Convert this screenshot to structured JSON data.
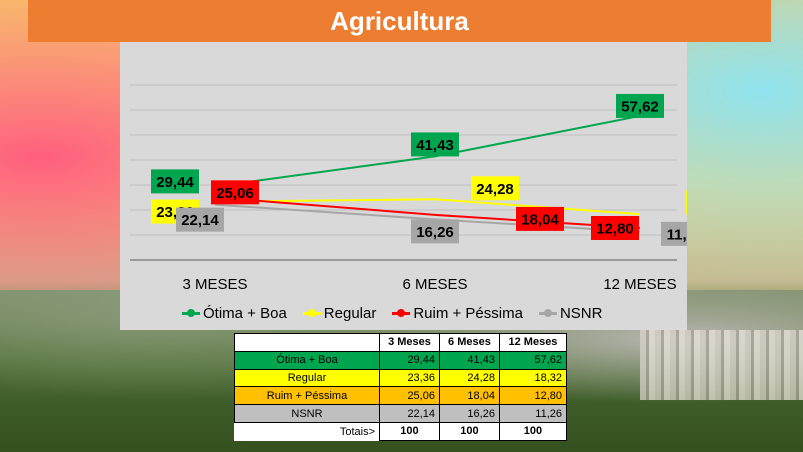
{
  "title": "Agricultura",
  "colors": {
    "title_bar": "#ed7d31",
    "otima": "#00a550",
    "regular": "#ffff00",
    "ruim": "#ff0000",
    "nsnr": "#a6a6a6",
    "row_regular": "#ffff00",
    "row_ruim": "#ffc000",
    "row_nsnr": "#bfbfbf"
  },
  "chart_data": {
    "type": "line",
    "categories": [
      "3 MESES",
      "6 MESES",
      "12 MESES"
    ],
    "series": [
      {
        "name": "Ótima + Boa",
        "values": [
          29.44,
          41.43,
          57.62
        ],
        "labels": [
          "29,44",
          "41,43",
          "57,62"
        ],
        "color": "#00a550"
      },
      {
        "name": "Regular",
        "values": [
          23.36,
          24.28,
          18.32
        ],
        "labels": [
          "23,36",
          "24,28",
          "18,32"
        ],
        "color": "#ffff00"
      },
      {
        "name": "Ruim + Péssima",
        "values": [
          25.06,
          18.04,
          12.8
        ],
        "labels": [
          "25,06",
          "18,04",
          "12,80"
        ],
        "color": "#ff0000"
      },
      {
        "name": "NSNR",
        "values": [
          22.14,
          16.26,
          11.26
        ],
        "labels": [
          "22,14",
          "16,26",
          "11,26"
        ],
        "color": "#a6a6a6"
      }
    ],
    "grid": true,
    "legend_position": "bottom"
  },
  "table": {
    "headers": [
      "",
      "3 Meses",
      "6 Meses",
      "12 Meses"
    ],
    "rows": [
      {
        "label": "Ótima + Boa",
        "values": [
          "29,44",
          "41,43",
          "57,62"
        ]
      },
      {
        "label": "Regular",
        "values": [
          "23,36",
          "24,28",
          "18,32"
        ]
      },
      {
        "label": "Ruim + Péssima",
        "values": [
          "25,06",
          "18,04",
          "12,80"
        ]
      },
      {
        "label": "NSNR",
        "values": [
          "22,14",
          "16,26",
          "11,26"
        ]
      }
    ],
    "totals_label": "Totais>",
    "totals": [
      "100",
      "100",
      "100"
    ]
  }
}
